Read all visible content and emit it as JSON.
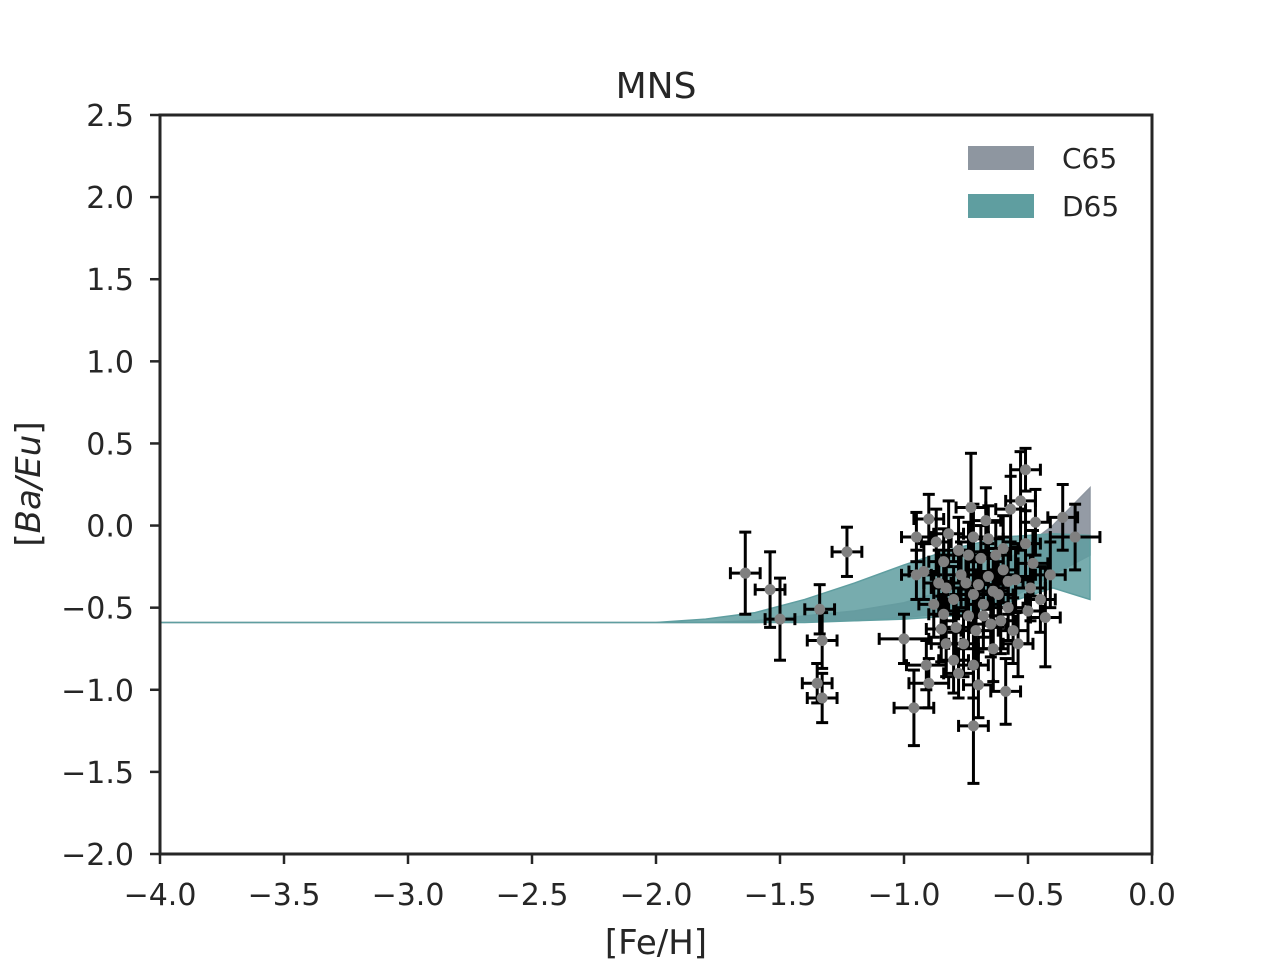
{
  "chart_data": {
    "type": "scatter",
    "title": "MNS",
    "xlabel": "[Fe/H]",
    "ylabel": "[Ba/Eu]",
    "xlim": [
      -4.0,
      0.0
    ],
    "ylim": [
      -2.0,
      2.5
    ],
    "xticks": [
      "−4.0",
      "−3.5",
      "−3.0",
      "−2.5",
      "−2.0",
      "−1.5",
      "−1.0",
      "−0.5",
      "0.0"
    ],
    "yticks": [
      "−2.0",
      "−1.5",
      "−1.0",
      "−0.5",
      "0.0",
      "0.5",
      "1.0",
      "1.5",
      "2.0",
      "2.5"
    ],
    "grid": false,
    "legend_position": "top-right",
    "colors": {
      "C65": "#8e96a0",
      "D65": "#5f9ea0",
      "points": "#808080",
      "errorbars": "#000000",
      "axes": "#262626"
    },
    "bands": [
      {
        "name": "C65",
        "x": [
          -4.0,
          -3.5,
          -3.0,
          -2.5,
          -2.0,
          -1.8,
          -1.6,
          -1.4,
          -1.2,
          -1.0,
          -0.8,
          -0.6,
          -0.4,
          -0.25
        ],
        "lower": [
          -0.59,
          -0.59,
          -0.59,
          -0.59,
          -0.59,
          -0.59,
          -0.59,
          -0.58,
          -0.58,
          -0.56,
          -0.53,
          -0.47,
          -0.3,
          -0.18
        ],
        "upper": [
          -0.59,
          -0.59,
          -0.59,
          -0.59,
          -0.59,
          -0.59,
          -0.58,
          -0.55,
          -0.52,
          -0.47,
          -0.38,
          -0.23,
          0.0,
          0.23
        ]
      },
      {
        "name": "D65",
        "x": [
          -4.0,
          -3.5,
          -3.0,
          -2.5,
          -2.0,
          -1.8,
          -1.6,
          -1.4,
          -1.2,
          -1.0,
          -0.8,
          -0.6,
          -0.4,
          -0.25
        ],
        "lower": [
          -0.59,
          -0.59,
          -0.59,
          -0.59,
          -0.59,
          -0.59,
          -0.59,
          -0.59,
          -0.58,
          -0.57,
          -0.55,
          -0.48,
          -0.38,
          -0.45
        ],
        "upper": [
          -0.59,
          -0.59,
          -0.59,
          -0.59,
          -0.59,
          -0.57,
          -0.53,
          -0.45,
          -0.35,
          -0.24,
          -0.14,
          -0.07,
          -0.05,
          -0.06
        ]
      }
    ],
    "points": [
      {
        "x": -1.64,
        "y": -0.29,
        "xerr": 0.06,
        "yerr": 0.25
      },
      {
        "x": -1.54,
        "y": -0.39,
        "xerr": 0.06,
        "yerr": 0.23
      },
      {
        "x": -1.5,
        "y": -0.57,
        "xerr": 0.06,
        "yerr": 0.25
      },
      {
        "x": -1.23,
        "y": -0.16,
        "xerr": 0.06,
        "yerr": 0.15
      },
      {
        "x": -1.34,
        "y": -0.51,
        "xerr": 0.06,
        "yerr": 0.15
      },
      {
        "x": -1.33,
        "y": -0.7,
        "xerr": 0.06,
        "yerr": 0.17
      },
      {
        "x": -1.35,
        "y": -0.96,
        "xerr": 0.06,
        "yerr": 0.12
      },
      {
        "x": -1.33,
        "y": -1.05,
        "xerr": 0.06,
        "yerr": 0.15
      },
      {
        "x": -1.0,
        "y": -0.69,
        "xerr": 0.1,
        "yerr": 0.15
      },
      {
        "x": -0.96,
        "y": -1.11,
        "xerr": 0.08,
        "yerr": 0.23
      },
      {
        "x": -0.91,
        "y": -0.85,
        "xerr": 0.08,
        "yerr": 0.15
      },
      {
        "x": -0.9,
        "y": -0.96,
        "xerr": 0.08,
        "yerr": 0.15
      },
      {
        "x": -0.95,
        "y": -0.07,
        "xerr": 0.06,
        "yerr": 0.15
      },
      {
        "x": -0.9,
        "y": 0.04,
        "xerr": 0.06,
        "yerr": 0.15
      },
      {
        "x": -0.92,
        "y": -0.28,
        "xerr": 0.06,
        "yerr": 0.17
      },
      {
        "x": -0.95,
        "y": -0.3,
        "xerr": 0.06,
        "yerr": 0.15
      },
      {
        "x": -0.88,
        "y": -0.48,
        "xerr": 0.06,
        "yerr": 0.2
      },
      {
        "x": -0.84,
        "y": -0.54,
        "xerr": 0.06,
        "yerr": 0.2
      },
      {
        "x": -0.85,
        "y": -0.63,
        "xerr": 0.06,
        "yerr": 0.2
      },
      {
        "x": -0.83,
        "y": -0.72,
        "xerr": 0.06,
        "yerr": 0.2
      },
      {
        "x": -0.83,
        "y": -0.38,
        "xerr": 0.06,
        "yerr": 0.2
      },
      {
        "x": -0.8,
        "y": -0.45,
        "xerr": 0.06,
        "yerr": 0.2
      },
      {
        "x": -0.8,
        "y": -0.82,
        "xerr": 0.06,
        "yerr": 0.2
      },
      {
        "x": -0.78,
        "y": -0.9,
        "xerr": 0.06,
        "yerr": 0.15
      },
      {
        "x": -0.78,
        "y": -0.15,
        "xerr": 0.06,
        "yerr": 0.2
      },
      {
        "x": -0.77,
        "y": -0.3,
        "xerr": 0.06,
        "yerr": 0.2
      },
      {
        "x": -0.75,
        "y": -0.35,
        "xerr": 0.06,
        "yerr": 0.2
      },
      {
        "x": -0.74,
        "y": -0.55,
        "xerr": 0.06,
        "yerr": 0.2
      },
      {
        "x": -0.73,
        "y": 0.11,
        "xerr": 0.06,
        "yerr": 0.33
      },
      {
        "x": -0.72,
        "y": -0.07,
        "xerr": 0.06,
        "yerr": 0.2
      },
      {
        "x": -0.72,
        "y": -0.42,
        "xerr": 0.06,
        "yerr": 0.2
      },
      {
        "x": -0.71,
        "y": -0.64,
        "xerr": 0.06,
        "yerr": 0.2
      },
      {
        "x": -0.72,
        "y": -0.85,
        "xerr": 0.06,
        "yerr": 0.2
      },
      {
        "x": -0.72,
        "y": -1.22,
        "xerr": 0.06,
        "yerr": 0.35
      },
      {
        "x": -0.7,
        "y": -0.97,
        "xerr": 0.06,
        "yerr": 0.2
      },
      {
        "x": -0.69,
        "y": -0.2,
        "xerr": 0.06,
        "yerr": 0.2
      },
      {
        "x": -0.68,
        "y": -0.48,
        "xerr": 0.06,
        "yerr": 0.2
      },
      {
        "x": -0.67,
        "y": 0.03,
        "xerr": 0.06,
        "yerr": 0.2
      },
      {
        "x": -0.66,
        "y": -0.31,
        "xerr": 0.06,
        "yerr": 0.2
      },
      {
        "x": -0.65,
        "y": -0.6,
        "xerr": 0.06,
        "yerr": 0.2
      },
      {
        "x": -0.64,
        "y": -0.75,
        "xerr": 0.06,
        "yerr": 0.2
      },
      {
        "x": -0.63,
        "y": -0.18,
        "xerr": 0.06,
        "yerr": 0.2
      },
      {
        "x": -0.62,
        "y": -0.42,
        "xerr": 0.06,
        "yerr": 0.2
      },
      {
        "x": -0.6,
        "y": -0.27,
        "xerr": 0.06,
        "yerr": 0.2
      },
      {
        "x": -0.59,
        "y": -1.01,
        "xerr": 0.06,
        "yerr": 0.2
      },
      {
        "x": -0.58,
        "y": -0.5,
        "xerr": 0.06,
        "yerr": 0.2
      },
      {
        "x": -0.57,
        "y": 0.1,
        "xerr": 0.06,
        "yerr": 0.2
      },
      {
        "x": -0.56,
        "y": -0.64,
        "xerr": 0.06,
        "yerr": 0.2
      },
      {
        "x": -0.55,
        "y": -0.33,
        "xerr": 0.06,
        "yerr": 0.2
      },
      {
        "x": -0.54,
        "y": -0.72,
        "xerr": 0.06,
        "yerr": 0.2
      },
      {
        "x": -0.53,
        "y": 0.15,
        "xerr": 0.06,
        "yerr": 0.3
      },
      {
        "x": -0.51,
        "y": 0.34,
        "xerr": 0.06,
        "yerr": 0.13
      },
      {
        "x": -0.51,
        "y": -0.11,
        "xerr": 0.06,
        "yerr": 0.2
      },
      {
        "x": -0.5,
        "y": -0.52,
        "xerr": 0.06,
        "yerr": 0.2
      },
      {
        "x": -0.49,
        "y": -0.38,
        "xerr": 0.06,
        "yerr": 0.2
      },
      {
        "x": -0.48,
        "y": -0.23,
        "xerr": 0.06,
        "yerr": 0.2
      },
      {
        "x": -0.47,
        "y": 0.02,
        "xerr": 0.06,
        "yerr": 0.2
      },
      {
        "x": -0.45,
        "y": -0.45,
        "xerr": 0.06,
        "yerr": 0.2
      },
      {
        "x": -0.43,
        "y": -0.56,
        "xerr": 0.06,
        "yerr": 0.3
      },
      {
        "x": -0.41,
        "y": -0.3,
        "xerr": 0.06,
        "yerr": 0.2
      },
      {
        "x": -0.36,
        "y": 0.05,
        "xerr": 0.06,
        "yerr": 0.2
      },
      {
        "x": -0.31,
        "y": -0.07,
        "xerr": 0.1,
        "yerr": 0.2
      },
      {
        "x": -0.84,
        "y": -0.22,
        "xerr": 0.06,
        "yerr": 0.2
      },
      {
        "x": -0.82,
        "y": -0.05,
        "xerr": 0.06,
        "yerr": 0.2
      },
      {
        "x": -0.79,
        "y": -0.62,
        "xerr": 0.06,
        "yerr": 0.2
      },
      {
        "x": -0.76,
        "y": -0.72,
        "xerr": 0.06,
        "yerr": 0.2
      },
      {
        "x": -0.74,
        "y": -0.18,
        "xerr": 0.06,
        "yerr": 0.2
      },
      {
        "x": -0.7,
        "y": -0.36,
        "xerr": 0.06,
        "yerr": 0.2
      },
      {
        "x": -0.68,
        "y": -0.55,
        "xerr": 0.06,
        "yerr": 0.2
      },
      {
        "x": -0.66,
        "y": -0.08,
        "xerr": 0.06,
        "yerr": 0.2
      },
      {
        "x": -0.64,
        "y": -0.4,
        "xerr": 0.06,
        "yerr": 0.2
      },
      {
        "x": -0.61,
        "y": -0.58,
        "xerr": 0.06,
        "yerr": 0.2
      },
      {
        "x": -0.6,
        "y": -0.14,
        "xerr": 0.06,
        "yerr": 0.2
      },
      {
        "x": -0.58,
        "y": -0.34,
        "xerr": 0.06,
        "yerr": 0.2
      },
      {
        "x": -0.86,
        "y": -0.35,
        "xerr": 0.06,
        "yerr": 0.2
      },
      {
        "x": -0.87,
        "y": -0.1,
        "xerr": 0.06,
        "yerr": 0.2
      }
    ]
  }
}
